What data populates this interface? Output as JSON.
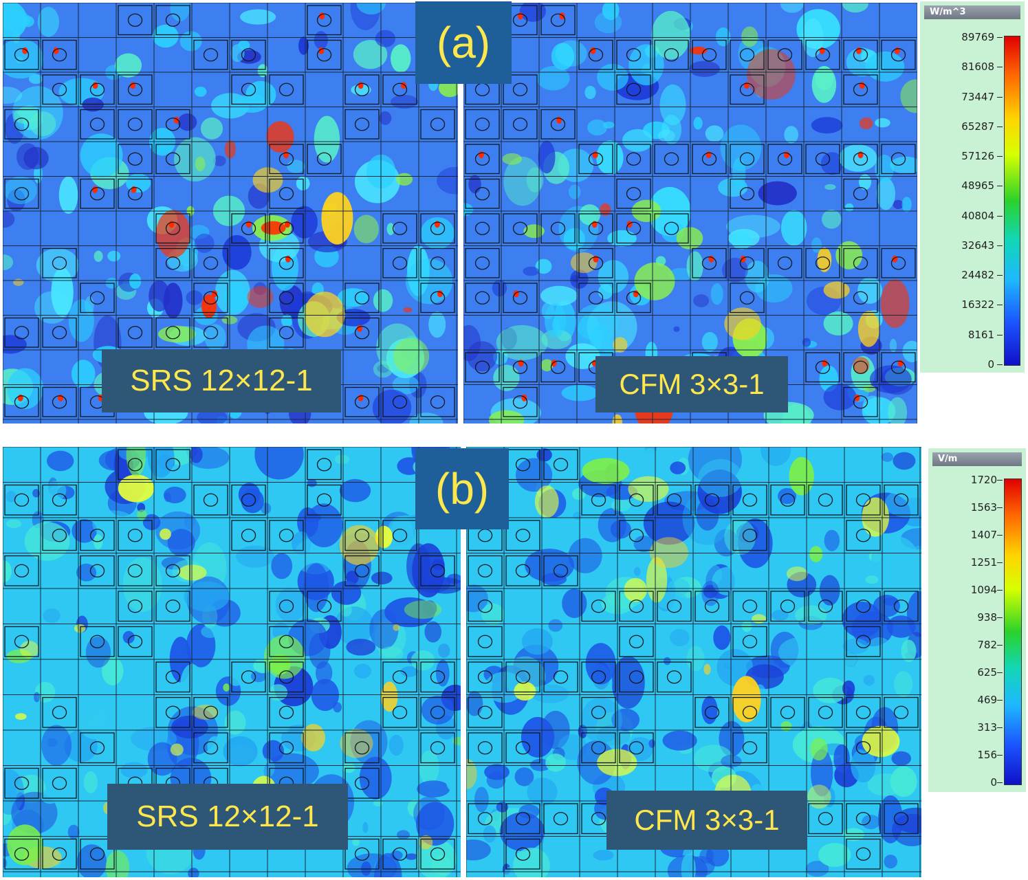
{
  "figure_a": {
    "letter": "(a)",
    "left_label": "SRS 12×12-1",
    "right_label": "CFM 3×3-1",
    "colorbar": {
      "unit": "W/m^3",
      "ticks": [
        "89769",
        "81608",
        "73447",
        "65287",
        "57126",
        "48965",
        "40804",
        "32643",
        "24482",
        "16322",
        "8161",
        "0"
      ]
    }
  },
  "figure_b": {
    "letter": "(b)",
    "left_label": "SRS 12×12-1",
    "right_label": "CFM 3×3-1",
    "colorbar": {
      "unit": "V/m",
      "ticks": [
        "1720",
        "1563",
        "1407",
        "1251",
        "1094",
        "938",
        "782",
        "625",
        "469",
        "313",
        "156",
        "0"
      ]
    }
  },
  "colors": {
    "label_bg": "#2e5677",
    "label_text": "#fde74c",
    "letter_bg": "#1f5f99",
    "colorbar_bg": "#c9f1d4"
  }
}
